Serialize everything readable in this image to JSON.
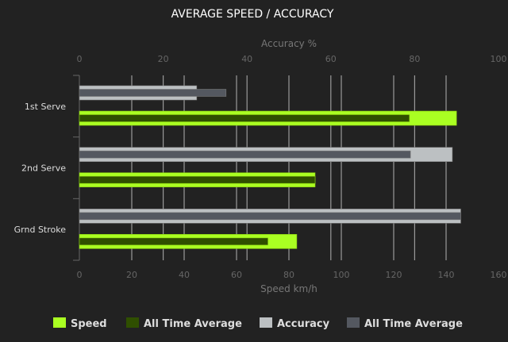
{
  "chart_data": {
    "type": "bar",
    "orientation": "horizontal",
    "title": "AVERAGE SPEED / ACCURACY",
    "categories": [
      "1st Serve",
      "2nd Serve",
      "Grnd Stroke"
    ],
    "speed_axis": {
      "label": "Speed km/h",
      "range": [
        0,
        160
      ],
      "ticks": [
        0,
        20,
        40,
        60,
        80,
        100,
        120,
        140,
        160
      ]
    },
    "accuracy_axis": {
      "label": "Accuracy %",
      "range": [
        0,
        100
      ],
      "ticks": [
        0,
        20,
        40,
        60,
        80,
        100
      ]
    },
    "series": [
      {
        "name": "Speed",
        "axis": "speed",
        "color": "#aaff22",
        "values": [
          144,
          90,
          83
        ]
      },
      {
        "name": "All Time Average",
        "axis": "speed",
        "color": "#2f4f00",
        "values": [
          126,
          90,
          72
        ]
      },
      {
        "name": "Accuracy",
        "axis": "accuracy",
        "color": "#bcc0c2",
        "values": [
          28,
          89,
          91
        ]
      },
      {
        "name": "All Time Average",
        "axis": "accuracy",
        "color": "#545860",
        "values": [
          35,
          79,
          91
        ]
      }
    ],
    "grid": true,
    "legend_position": "bottom"
  }
}
